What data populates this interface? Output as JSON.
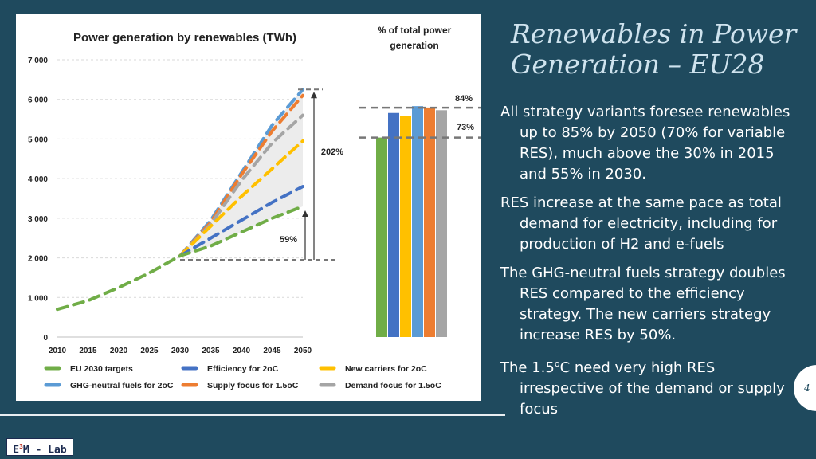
{
  "slide": {
    "title_line1": "Renewables in Power",
    "title_line2": "Generation – EU28",
    "bullets": [
      "All strategy variants foresee renewables up to 85% by 2050 (70% for variable RES), much above the 30% in 2015 and 55% in 2030.",
      "RES increase at the same pace as total demand for electricity, including for production of H2 and e-fuels",
      "The GHG-neutral fuels strategy doubles RES compared to the efficiency strategy. The new carriers strategy increase RES by 50%."
    ],
    "bullet4_pre": "The 1.5",
    "bullet4_sup": "o",
    "bullet4_post": "C need very high RES irrespective of the demand or supply focus",
    "page_number": "4",
    "logo_e": "E",
    "logo_sup": "3",
    "logo_rest": "M - Lab"
  },
  "chart_data": [
    {
      "type": "line",
      "title": "Power generation by renewables (TWh)",
      "x": [
        2010,
        2015,
        2020,
        2025,
        2030,
        2035,
        2040,
        2045,
        2050
      ],
      "x_tick_labels": [
        "2010",
        "2015",
        "2020",
        "2025",
        "2030",
        "2035",
        "2040",
        "2045",
        "2050"
      ],
      "y_ticks": [
        0,
        1000,
        2000,
        3000,
        4000,
        5000,
        6000,
        7000
      ],
      "y_tick_labels": [
        "0",
        "1 000",
        "2 000",
        "3 000",
        "4 000",
        "5 000",
        "6 000",
        "7 000"
      ],
      "ylim": [
        0,
        7000
      ],
      "series": [
        {
          "name": "EU 2030 targets",
          "color": "#70ad47",
          "values": [
            700,
            920,
            1250,
            1620,
            2050,
            2300,
            2650,
            3000,
            3300
          ]
        },
        {
          "name": "Efficiency for 2oC",
          "color": "#4472c4",
          "values": [
            null,
            null,
            null,
            null,
            2050,
            2500,
            2950,
            3400,
            3800
          ]
        },
        {
          "name": "New carriers for 2oC",
          "color": "#ffc000",
          "values": [
            null,
            null,
            null,
            null,
            2050,
            2800,
            3550,
            4250,
            4950
          ]
        },
        {
          "name": "GHG-neutral fuels for 2oC",
          "color": "#5b9bd5",
          "values": [
            null,
            null,
            null,
            null,
            2050,
            2950,
            4150,
            5350,
            6250
          ]
        },
        {
          "name": "Supply focus for 1.5oC",
          "color": "#ed7d31",
          "values": [
            null,
            null,
            null,
            null,
            2050,
            2900,
            4100,
            5200,
            6100
          ]
        },
        {
          "name": "Demand focus for 1.5oC",
          "color": "#a5a5a5",
          "values": [
            null,
            null,
            null,
            null,
            2050,
            2850,
            3950,
            4900,
            5600
          ]
        }
      ],
      "annotations": {
        "low_pct": "59%",
        "high_pct": "202%",
        "baseline_value": 1950,
        "top_value": 6250
      },
      "legend": [
        "EU 2030 targets",
        "Efficiency for 2oC",
        "New carriers for 2oC",
        "GHG-neutral fuels for 2oC",
        "Supply focus for 1.5oC",
        "Demand focus for 1.5oC"
      ]
    },
    {
      "type": "bar",
      "title": "% of total power generation",
      "categories": [
        "EU 2030 targets",
        "Efficiency for 2oC",
        "New carriers for 2oC",
        "GHG-neutral fuels for 2oC",
        "Supply focus for 1.5oC",
        "Demand focus for 1.5oC"
      ],
      "values": [
        73,
        82,
        81,
        84.5,
        84,
        83
      ],
      "colors": [
        "#70ad47",
        "#4472c4",
        "#ffc000",
        "#5b9bd5",
        "#ed7d31",
        "#a5a5a5"
      ],
      "labels": {
        "high": "84%",
        "low": "73%"
      },
      "ylim": [
        0,
        100
      ]
    }
  ]
}
